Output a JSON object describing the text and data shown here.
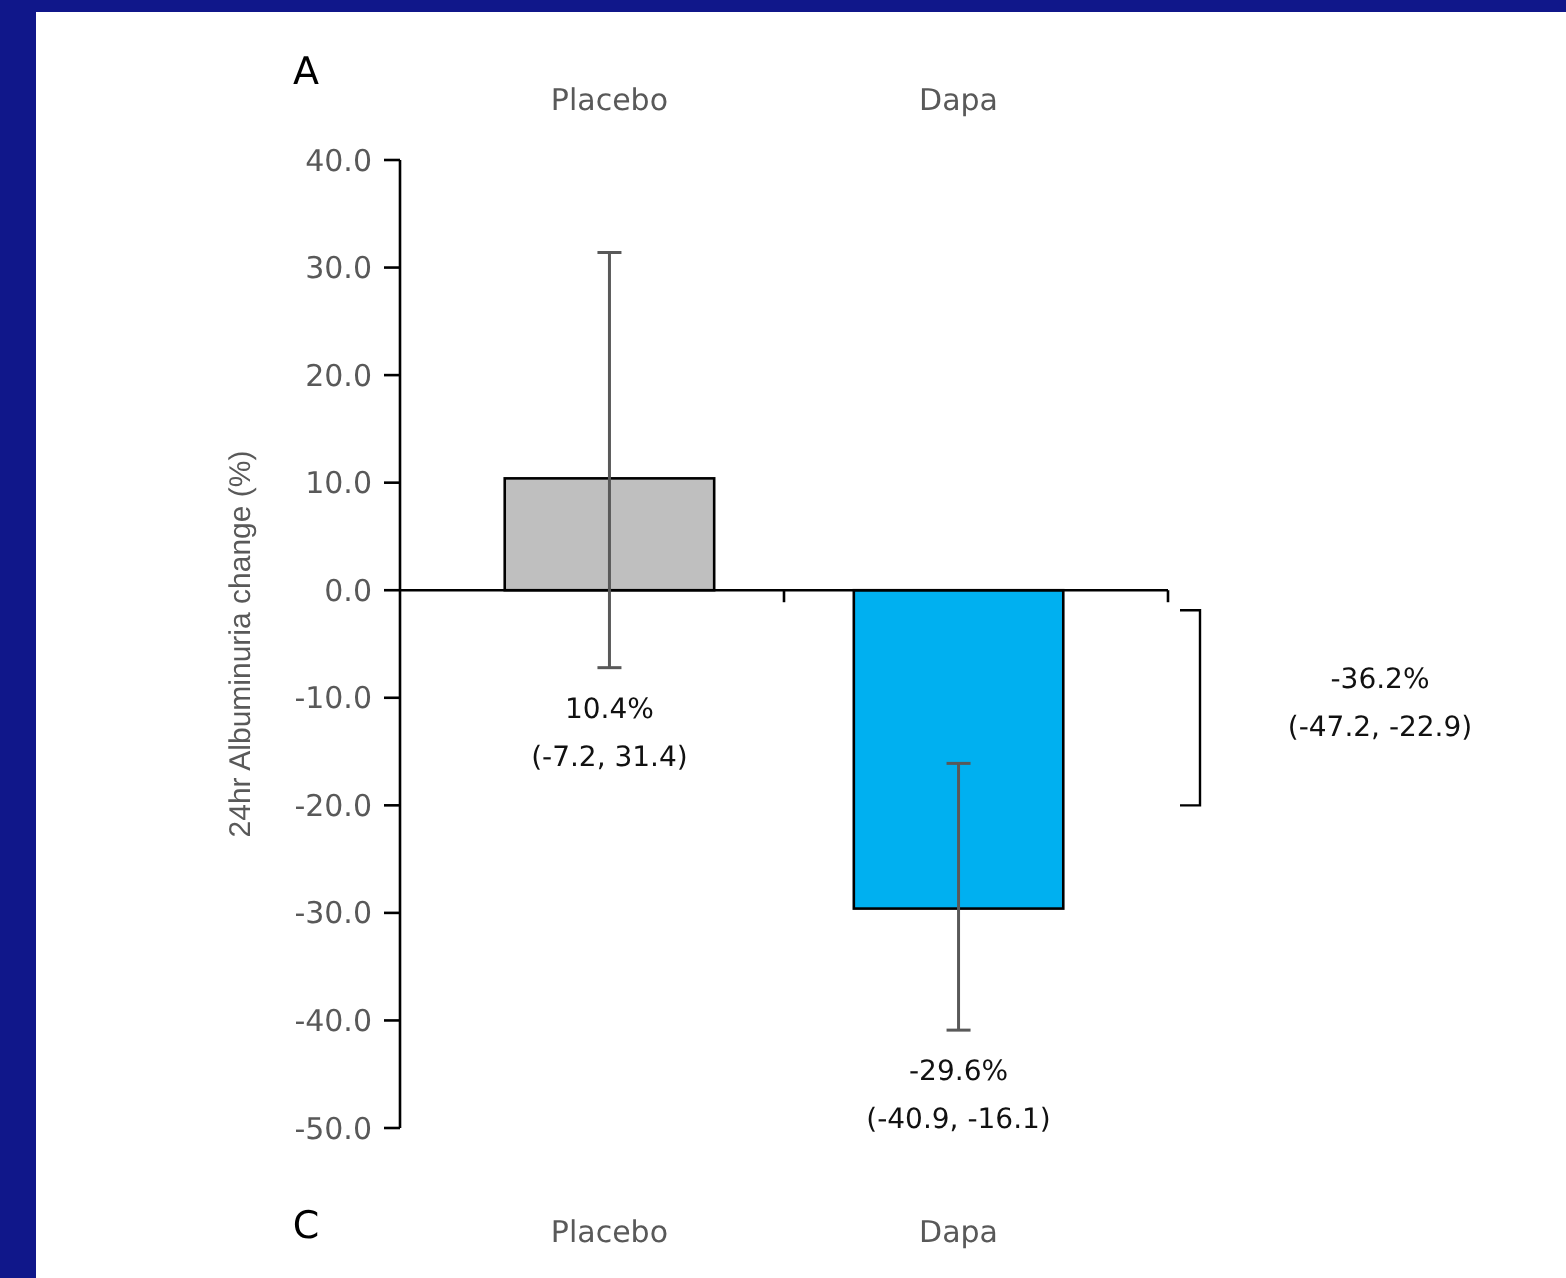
{
  "chart_data": {
    "type": "bar",
    "title": "A",
    "ylabel": "24hr Albuminuria change (%)",
    "categories": [
      "Placebo",
      "Dapa"
    ],
    "values": [
      10.4,
      -29.6
    ],
    "colors": [
      "#bfbfbf",
      "#00b0f0"
    ],
    "errors": [
      [
        -7.2,
        31.4
      ],
      [
        -40.9,
        -16.1
      ]
    ],
    "ylim": [
      -50,
      40
    ],
    "yticks": [
      {
        "value": -50,
        "label": "-50.0"
      },
      {
        "value": -40,
        "label": "-40.0"
      },
      {
        "value": -30,
        "label": "-30.0"
      },
      {
        "value": -20,
        "label": "-20.0"
      },
      {
        "value": -10,
        "label": "-10.0"
      },
      {
        "value": 0,
        "label": "0.0"
      },
      {
        "value": 10,
        "label": "10.0"
      },
      {
        "value": 20,
        "label": "20.0"
      },
      {
        "value": 30,
        "label": "30.0"
      },
      {
        "value": 40,
        "label": "40.0"
      }
    ],
    "annotations": [
      {
        "text": "10.4%\n(-7.2, 31.4)",
        "x": "Placebo",
        "y": -7.2
      },
      {
        "text": "-29.6%\n(-40.9, -16.1)",
        "x": "Dapa",
        "y": -40.9
      },
      "-36.2%\n(-47.2, -22.9)",
      "C",
      "Placebo",
      "Dapa"
    ]
  }
}
